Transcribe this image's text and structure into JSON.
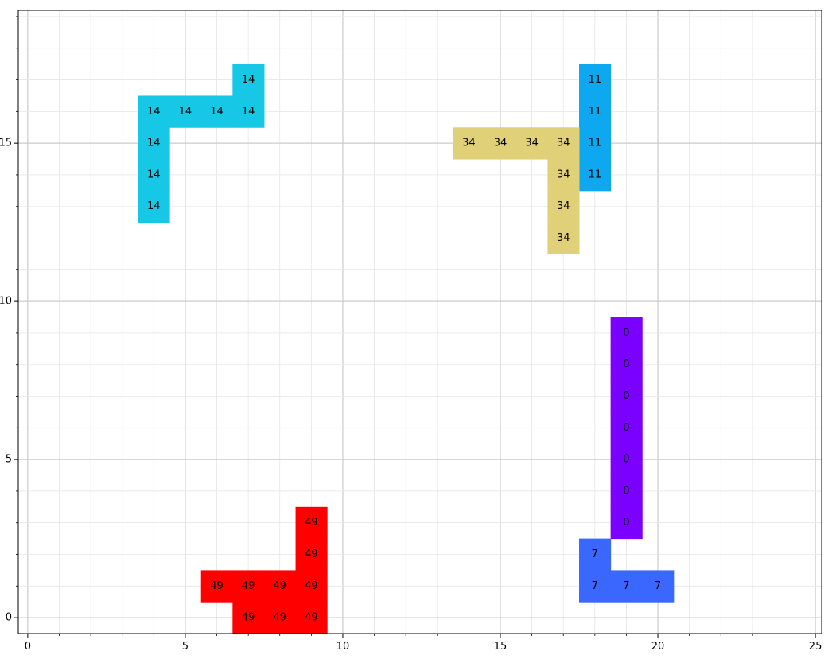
{
  "chart_data": {
    "type": "heatmap",
    "title": "",
    "xlabel": "",
    "ylabel": "",
    "xlim": [
      -0.3,
      25.2
    ],
    "ylim": [
      -0.5,
      19.2
    ],
    "major_ticks": [
      0,
      5,
      10,
      15,
      20,
      25
    ],
    "major_tick_labels": [
      "0",
      "5",
      "10",
      "15",
      "20",
      "25"
    ],
    "y_major_ticks": [
      0,
      5,
      10,
      15
    ],
    "y_major_tick_labels": [
      "0",
      "5",
      "10",
      "15"
    ],
    "grid": true,
    "shapes": [
      {
        "id": "14",
        "color": "#16c8e6",
        "cells": [
          [
            4,
            13
          ],
          [
            4,
            14
          ],
          [
            4,
            15
          ],
          [
            4,
            16
          ],
          [
            5,
            16
          ],
          [
            6,
            16
          ],
          [
            7,
            16
          ],
          [
            7,
            17
          ]
        ]
      },
      {
        "id": "11",
        "color": "#0ea8f0",
        "cells": [
          [
            18,
            14
          ],
          [
            18,
            15
          ],
          [
            18,
            16
          ],
          [
            18,
            17
          ]
        ]
      },
      {
        "id": "34",
        "color": "#e0d078",
        "cells": [
          [
            14,
            15
          ],
          [
            15,
            15
          ],
          [
            16,
            15
          ],
          [
            17,
            15
          ],
          [
            17,
            14
          ],
          [
            17,
            13
          ],
          [
            17,
            12
          ]
        ]
      },
      {
        "id": "0",
        "color": "#7a00ff",
        "cells": [
          [
            19,
            3
          ],
          [
            19,
            4
          ],
          [
            19,
            5
          ],
          [
            19,
            6
          ],
          [
            19,
            7
          ],
          [
            19,
            8
          ],
          [
            19,
            9
          ]
        ]
      },
      {
        "id": "7",
        "color": "#3a68ff",
        "cells": [
          [
            18,
            1
          ],
          [
            18,
            2
          ],
          [
            19,
            1
          ],
          [
            20,
            1
          ]
        ]
      },
      {
        "id": "49",
        "color": "#ff0000",
        "cells": [
          [
            6,
            1
          ],
          [
            7,
            1
          ],
          [
            8,
            1
          ],
          [
            9,
            1
          ],
          [
            9,
            2
          ],
          [
            9,
            3
          ],
          [
            7,
            0
          ],
          [
            8,
            0
          ],
          [
            9,
            0
          ]
        ]
      }
    ]
  }
}
